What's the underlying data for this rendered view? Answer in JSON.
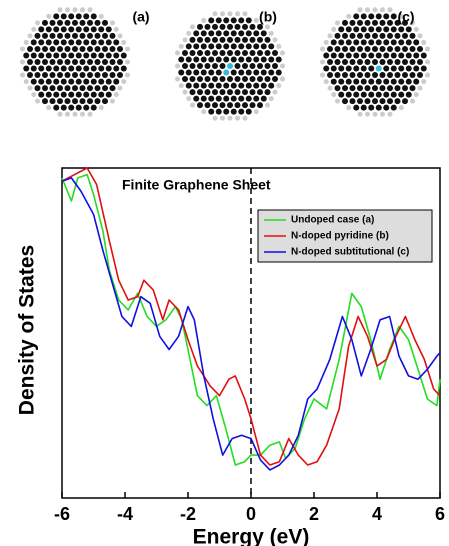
{
  "panels": [
    "(a)",
    "(b)",
    "(c)"
  ],
  "chart_data": {
    "type": "line",
    "title": "Finite Graphene Sheet",
    "x_label": "Energy (eV)",
    "y_label": "Density of States",
    "xlim": [
      -6,
      6
    ],
    "ylim": [
      0,
      10
    ],
    "xticks": [
      -6,
      -4,
      -2,
      0,
      2,
      4,
      6
    ],
    "legend": "top-right",
    "series": [
      {
        "name": "Undoped case (a)",
        "color": "#22dd22",
        "x": [
          -6,
          -5.7,
          -5.5,
          -5.2,
          -5,
          -4.7,
          -4.5,
          -4.2,
          -3.9,
          -3.6,
          -3.3,
          -3,
          -2.7,
          -2.4,
          -2.2,
          -2,
          -1.7,
          -1.4,
          -1.1,
          -0.8,
          -0.5,
          -0.2,
          0,
          0.3,
          0.6,
          0.9,
          1.1,
          1.4,
          1.7,
          2,
          2.4,
          2.8,
          3.2,
          3.5,
          3.8,
          4.1,
          4.4,
          4.7,
          5,
          5.3,
          5.6,
          5.9,
          6
        ],
        "values": [
          9.7,
          9.0,
          9.7,
          9.8,
          9.2,
          8.1,
          6.9,
          6.0,
          5.7,
          6.2,
          5.5,
          5.2,
          5.4,
          5.8,
          5.4,
          4.5,
          3.1,
          2.8,
          3.1,
          2.1,
          1.0,
          1.1,
          1.3,
          1.3,
          1.6,
          1.7,
          1.2,
          1.5,
          2.4,
          3.0,
          2.7,
          4.2,
          6.2,
          5.8,
          4.8,
          3.6,
          4.5,
          5.2,
          4.8,
          3.9,
          3.0,
          2.8,
          3.6
        ]
      },
      {
        "name": "N-doped pyridine (b)",
        "color": "#e01010",
        "x": [
          -6,
          -5.6,
          -5.2,
          -4.9,
          -4.5,
          -4.2,
          -3.9,
          -3.6,
          -3.4,
          -3.1,
          -2.8,
          -2.6,
          -2.3,
          -2,
          -1.7,
          -1.3,
          -1,
          -0.7,
          -0.5,
          -0.2,
          0,
          0.3,
          0.6,
          0.9,
          1.2,
          1.5,
          1.8,
          2.1,
          2.4,
          2.8,
          3.1,
          3.4,
          3.7,
          4,
          4.3,
          4.6,
          4.9,
          5.2,
          5.5,
          5.8,
          6
        ],
        "values": [
          9.6,
          9.8,
          10,
          9.5,
          7.8,
          6.6,
          6.0,
          6.1,
          6.6,
          6.3,
          5.4,
          6.0,
          5.7,
          4.8,
          4.0,
          3.4,
          3.1,
          3.6,
          3.7,
          3.0,
          2.4,
          1.3,
          1.0,
          1.1,
          1.8,
          1.3,
          1.0,
          1.1,
          1.6,
          2.7,
          4.6,
          5.5,
          4.9,
          4.0,
          4.2,
          4.9,
          5.5,
          4.8,
          4.2,
          3.3,
          3.1
        ]
      },
      {
        "name": "N-doped subtitutional (c)",
        "color": "#1010e0",
        "x": [
          -6,
          -5.7,
          -5.4,
          -5,
          -4.7,
          -4.4,
          -4.1,
          -3.8,
          -3.5,
          -3.2,
          -2.9,
          -2.6,
          -2.3,
          -2,
          -1.8,
          -1.5,
          -1.2,
          -0.9,
          -0.6,
          -0.3,
          0,
          0.3,
          0.6,
          0.9,
          1.2,
          1.5,
          1.8,
          2.1,
          2.5,
          2.9,
          3.2,
          3.5,
          3.8,
          4.1,
          4.4,
          4.7,
          5,
          5.3,
          5.6,
          5.9,
          6
        ],
        "values": [
          9.6,
          9.7,
          9.3,
          8.6,
          7.5,
          6.5,
          5.5,
          5.2,
          6.1,
          5.9,
          4.9,
          4.5,
          4.9,
          5.8,
          5.4,
          3.7,
          2.4,
          1.3,
          1.8,
          1.9,
          1.8,
          1.15,
          0.85,
          1.0,
          1.3,
          1.9,
          3.0,
          3.3,
          4.2,
          5.5,
          4.8,
          3.7,
          4.5,
          5.4,
          5.5,
          4.3,
          3.7,
          3.6,
          3.9,
          4.3,
          4.4
        ]
      }
    ]
  }
}
